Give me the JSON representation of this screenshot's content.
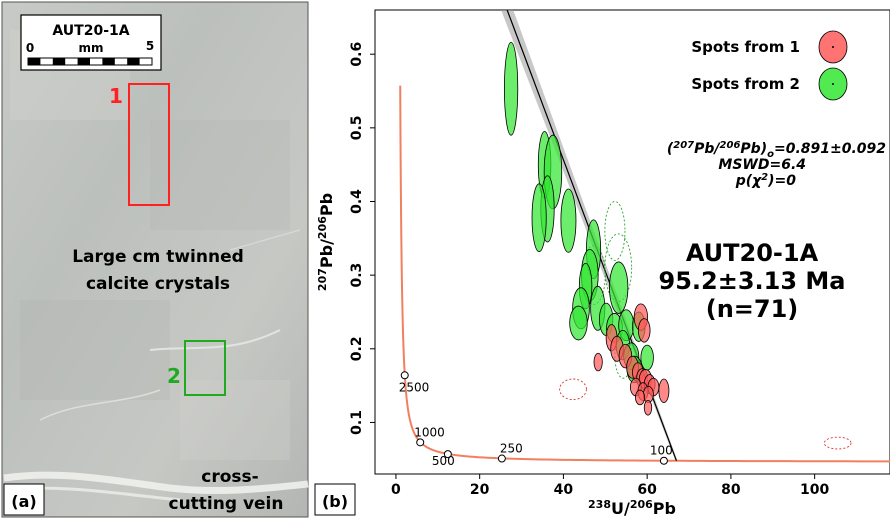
{
  "panel_a": {
    "label": "(a)",
    "sample_label": "AUT20-1A",
    "scale": {
      "zero": "0",
      "unit": "mm",
      "max": "5"
    },
    "region_1": {
      "label": "1",
      "color": "#ff2020"
    },
    "region_2": {
      "label": "2",
      "color": "#1faa1f"
    },
    "caption_line1": "Large cm twinned",
    "caption_line2": "calcite crystals",
    "vein_line1": "cross-",
    "vein_line2": "cutting vein"
  },
  "panel_b": {
    "label": "(b)"
  },
  "chart_data": {
    "type": "scatter",
    "xlabel": "238U/206Pb",
    "xlabel_sup1": "238",
    "xlabel_mid": "U/",
    "xlabel_sup2": "206",
    "xlabel_end": "Pb",
    "ylabel": "207Pb/206Pb",
    "ylabel_sup1": "207",
    "ylabel_mid": "Pb/",
    "ylabel_sup2": "206",
    "ylabel_end": "Pb",
    "xlim": [
      -5,
      118
    ],
    "ylim": [
      0.03,
      0.66
    ],
    "xticks": [
      0,
      20,
      40,
      60,
      80,
      100
    ],
    "yticks": [
      0.1,
      0.2,
      0.3,
      0.4,
      0.5,
      0.6
    ],
    "legend": {
      "position": "top-right",
      "entries": [
        {
          "label": "Spots from 1",
          "color": "#ff5a5a"
        },
        {
          "label": "Spots from 2",
          "color": "#33e633"
        }
      ]
    },
    "stats": {
      "intercept_text": "(207Pb/206Pb)o=0.891±0.092",
      "intercept_a": "(",
      "intercept_sup1": "207",
      "intercept_b": "Pb/",
      "intercept_sup2": "206",
      "intercept_c": "Pb)",
      "intercept_sub": "o",
      "intercept_d": "=0.891±0.092",
      "mswd": "MSWD=6.4",
      "p_a": "p(χ",
      "p_sup": "2",
      "p_b": ")=0"
    },
    "result": {
      "sample": "AUT20-1A",
      "age": "95.2±3.13 Ma",
      "n": "(n=71)"
    },
    "regression_line": {
      "points": [
        [
          11.3,
          0.891
        ],
        [
          67,
          0.048
        ]
      ]
    },
    "concordia": {
      "color": "#f08060",
      "ticks": [
        {
          "label": "2500",
          "x": 2.1,
          "y": 0.164
        },
        {
          "label": "1000",
          "x": 5.8,
          "y": 0.073
        },
        {
          "label": "500",
          "x": 12.4,
          "y": 0.057
        },
        {
          "label": "250",
          "x": 25.3,
          "y": 0.051
        },
        {
          "label": "100",
          "x": 64.0,
          "y": 0.048
        }
      ]
    },
    "series": [
      {
        "name": "Spots from 2",
        "color": "#33e633",
        "ellipses": [
          {
            "x": 27.5,
            "y": 0.553,
            "rx": 1.6,
            "ry": 0.063
          },
          {
            "x": 35.5,
            "y": 0.45,
            "rx": 1.5,
            "ry": 0.045
          },
          {
            "x": 37.5,
            "y": 0.44,
            "rx": 2.1,
            "ry": 0.05
          },
          {
            "x": 36.2,
            "y": 0.39,
            "rx": 1.6,
            "ry": 0.045
          },
          {
            "x": 34.2,
            "y": 0.378,
            "rx": 1.7,
            "ry": 0.046
          },
          {
            "x": 41.2,
            "y": 0.374,
            "rx": 1.8,
            "ry": 0.043
          },
          {
            "x": 47.2,
            "y": 0.335,
            "rx": 1.7,
            "ry": 0.04
          },
          {
            "x": 46.3,
            "y": 0.3,
            "rx": 2.0,
            "ry": 0.035
          },
          {
            "x": 45.3,
            "y": 0.285,
            "rx": 1.5,
            "ry": 0.031
          },
          {
            "x": 53.2,
            "y": 0.283,
            "rx": 2.2,
            "ry": 0.035
          },
          {
            "x": 48.2,
            "y": 0.255,
            "rx": 1.7,
            "ry": 0.03
          },
          {
            "x": 44.2,
            "y": 0.255,
            "rx": 2.0,
            "ry": 0.028
          },
          {
            "x": 43.6,
            "y": 0.235,
            "rx": 2.1,
            "ry": 0.023
          },
          {
            "x": 50.2,
            "y": 0.24,
            "rx": 1.6,
            "ry": 0.022
          },
          {
            "x": 52.2,
            "y": 0.228,
            "rx": 1.9,
            "ry": 0.02
          },
          {
            "x": 55.0,
            "y": 0.232,
            "rx": 1.8,
            "ry": 0.021
          },
          {
            "x": 58.0,
            "y": 0.23,
            "rx": 1.5,
            "ry": 0.02
          },
          {
            "x": 54.2,
            "y": 0.205,
            "rx": 1.6,
            "ry": 0.02
          },
          {
            "x": 56.2,
            "y": 0.19,
            "rx": 1.8,
            "ry": 0.018
          },
          {
            "x": 60.0,
            "y": 0.188,
            "rx": 1.5,
            "ry": 0.017
          },
          {
            "x": 57.0,
            "y": 0.172,
            "rx": 1.8,
            "ry": 0.018
          }
        ],
        "dashed": [
          {
            "x": 52.3,
            "y": 0.36,
            "rx": 2.4,
            "ry": 0.04
          },
          {
            "x": 53.1,
            "y": 0.31,
            "rx": 3.2,
            "ry": 0.046
          },
          {
            "x": 47.2,
            "y": 0.3,
            "rx": 2.8,
            "ry": 0.04
          },
          {
            "x": 54.3,
            "y": 0.19,
            "rx": 2.0,
            "ry": 0.03
          }
        ]
      },
      {
        "name": "Spots from 1",
        "color": "#ff5a5a",
        "ellipses": [
          {
            "x": 58.5,
            "y": 0.243,
            "rx": 1.6,
            "ry": 0.018
          },
          {
            "x": 59.3,
            "y": 0.225,
            "rx": 1.4,
            "ry": 0.016
          },
          {
            "x": 51.5,
            "y": 0.215,
            "rx": 1.3,
            "ry": 0.018
          },
          {
            "x": 52.8,
            "y": 0.2,
            "rx": 1.5,
            "ry": 0.017
          },
          {
            "x": 54.8,
            "y": 0.19,
            "rx": 1.5,
            "ry": 0.016
          },
          {
            "x": 48.3,
            "y": 0.182,
            "rx": 1.0,
            "ry": 0.012
          },
          {
            "x": 56.5,
            "y": 0.175,
            "rx": 1.4,
            "ry": 0.015
          },
          {
            "x": 57.8,
            "y": 0.168,
            "rx": 1.3,
            "ry": 0.013
          },
          {
            "x": 58.8,
            "y": 0.16,
            "rx": 1.3,
            "ry": 0.013
          },
          {
            "x": 59.6,
            "y": 0.158,
            "rx": 1.5,
            "ry": 0.014
          },
          {
            "x": 60.6,
            "y": 0.152,
            "rx": 1.3,
            "ry": 0.013
          },
          {
            "x": 57.3,
            "y": 0.148,
            "rx": 1.3,
            "ry": 0.012
          },
          {
            "x": 59.0,
            "y": 0.142,
            "rx": 1.2,
            "ry": 0.012
          },
          {
            "x": 61.5,
            "y": 0.148,
            "rx": 1.3,
            "ry": 0.012
          },
          {
            "x": 60.3,
            "y": 0.138,
            "rx": 1.2,
            "ry": 0.011
          },
          {
            "x": 58.3,
            "y": 0.134,
            "rx": 1.1,
            "ry": 0.01
          },
          {
            "x": 64.0,
            "y": 0.143,
            "rx": 1.2,
            "ry": 0.016
          },
          {
            "x": 60.2,
            "y": 0.12,
            "rx": 0.9,
            "ry": 0.01
          }
        ],
        "dashed": [
          {
            "x": 42.3,
            "y": 0.145,
            "rx": 3.2,
            "ry": 0.014
          },
          {
            "x": 105.5,
            "y": 0.072,
            "rx": 3.2,
            "ry": 0.008
          }
        ]
      }
    ]
  }
}
